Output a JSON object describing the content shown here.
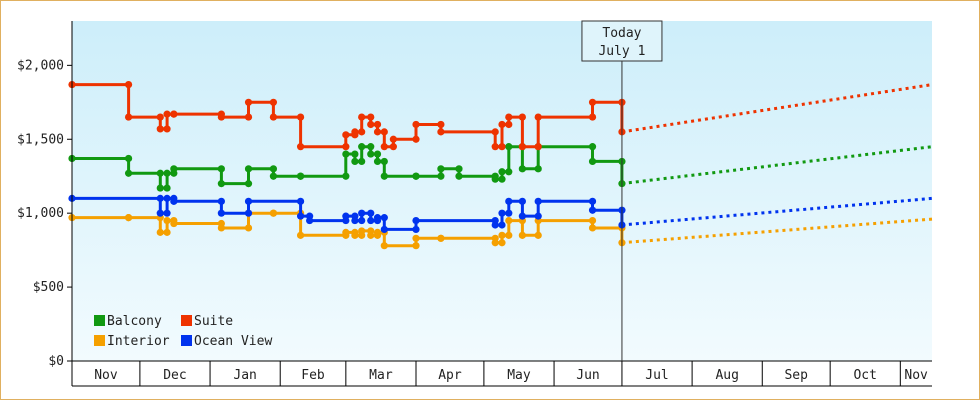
{
  "chart_data": {
    "type": "line",
    "ylim": [
      0,
      2300
    ],
    "y_ticks": [
      {
        "value": 0,
        "label": "$0"
      },
      {
        "value": 500,
        "label": "$500"
      },
      {
        "value": 1000,
        "label": "$1,000"
      },
      {
        "value": 1500,
        "label": "$1,500"
      },
      {
        "value": 2000,
        "label": "$2,000"
      }
    ],
    "x_range": [
      "2023-11-01",
      "2024-11-15"
    ],
    "months": [
      {
        "label": "Nov",
        "start": "2023-11-01",
        "end": "2023-12-01"
      },
      {
        "label": "Dec",
        "start": "2023-12-01",
        "end": "2024-01-01"
      },
      {
        "label": "Jan",
        "start": "2024-01-01",
        "end": "2024-02-01"
      },
      {
        "label": "Feb",
        "start": "2024-02-01",
        "end": "2024-03-01"
      },
      {
        "label": "Mar",
        "start": "2024-03-01",
        "end": "2024-04-01"
      },
      {
        "label": "Apr",
        "start": "2024-04-01",
        "end": "2024-05-01"
      },
      {
        "label": "May",
        "start": "2024-05-01",
        "end": "2024-06-01"
      },
      {
        "label": "Jun",
        "start": "2024-06-01",
        "end": "2024-07-01"
      },
      {
        "label": "Jul",
        "start": "2024-07-01",
        "end": "2024-08-01"
      },
      {
        "label": "Aug",
        "start": "2024-08-01",
        "end": "2024-09-01"
      },
      {
        "label": "Sep",
        "start": "2024-09-01",
        "end": "2024-10-01"
      },
      {
        "label": "Oct",
        "start": "2024-10-01",
        "end": "2024-11-01"
      },
      {
        "label": "Nov",
        "start": "2024-11-01",
        "end": "2024-11-15"
      }
    ],
    "today": {
      "date": "2024-07-01",
      "line1": "Today",
      "line2": "July 1"
    },
    "legend": {
      "placement": "bottom-left"
    },
    "series": [
      {
        "name": "Balcony",
        "color": "#119911",
        "points": [
          [
            "2023-11-01",
            1370
          ],
          [
            "2023-11-26",
            1370
          ],
          [
            "2023-11-26",
            1270
          ],
          [
            "2023-12-10",
            1270
          ],
          [
            "2023-12-10",
            1170
          ],
          [
            "2023-12-13",
            1170
          ],
          [
            "2023-12-13",
            1270
          ],
          [
            "2023-12-16",
            1270
          ],
          [
            "2023-12-16",
            1300
          ],
          [
            "2024-01-06",
            1300
          ],
          [
            "2024-01-06",
            1200
          ],
          [
            "2024-01-18",
            1200
          ],
          [
            "2024-01-18",
            1300
          ],
          [
            "2024-01-29",
            1300
          ],
          [
            "2024-01-29",
            1250
          ],
          [
            "2024-02-10",
            1250
          ],
          [
            "2024-02-10",
            1250
          ],
          [
            "2024-03-01",
            1250
          ],
          [
            "2024-03-01",
            1400
          ],
          [
            "2024-03-05",
            1400
          ],
          [
            "2024-03-05",
            1350
          ],
          [
            "2024-03-08",
            1350
          ],
          [
            "2024-03-08",
            1450
          ],
          [
            "2024-03-12",
            1450
          ],
          [
            "2024-03-12",
            1400
          ],
          [
            "2024-03-15",
            1400
          ],
          [
            "2024-03-15",
            1350
          ],
          [
            "2024-03-18",
            1350
          ],
          [
            "2024-03-18",
            1250
          ],
          [
            "2024-04-01",
            1250
          ],
          [
            "2024-04-01",
            1250
          ],
          [
            "2024-04-12",
            1250
          ],
          [
            "2024-04-12",
            1300
          ],
          [
            "2024-04-20",
            1300
          ],
          [
            "2024-04-20",
            1250
          ],
          [
            "2024-05-06",
            1250
          ],
          [
            "2024-05-06",
            1230
          ],
          [
            "2024-05-09",
            1230
          ],
          [
            "2024-05-09",
            1280
          ],
          [
            "2024-05-12",
            1280
          ],
          [
            "2024-05-12",
            1450
          ],
          [
            "2024-05-18",
            1450
          ],
          [
            "2024-05-18",
            1300
          ],
          [
            "2024-05-25",
            1300
          ],
          [
            "2024-05-25",
            1450
          ],
          [
            "2024-06-18",
            1450
          ],
          [
            "2024-06-18",
            1350
          ],
          [
            "2024-07-01",
            1350
          ],
          [
            "2024-07-01",
            1200
          ]
        ],
        "forecast": [
          [
            "2024-07-01",
            1200
          ],
          [
            "2024-11-15",
            1450
          ]
        ]
      },
      {
        "name": "Suite",
        "color": "#ee3300",
        "points": [
          [
            "2023-11-01",
            1870
          ],
          [
            "2023-11-26",
            1870
          ],
          [
            "2023-11-26",
            1650
          ],
          [
            "2023-12-10",
            1650
          ],
          [
            "2023-12-10",
            1570
          ],
          [
            "2023-12-13",
            1570
          ],
          [
            "2023-12-13",
            1670
          ],
          [
            "2023-12-16",
            1670
          ],
          [
            "2023-12-16",
            1670
          ],
          [
            "2024-01-06",
            1670
          ],
          [
            "2024-01-06",
            1650
          ],
          [
            "2024-01-18",
            1650
          ],
          [
            "2024-01-18",
            1750
          ],
          [
            "2024-01-29",
            1750
          ],
          [
            "2024-01-29",
            1650
          ],
          [
            "2024-02-10",
            1650
          ],
          [
            "2024-02-10",
            1450
          ],
          [
            "2024-03-01",
            1450
          ],
          [
            "2024-03-01",
            1530
          ],
          [
            "2024-03-05",
            1530
          ],
          [
            "2024-03-05",
            1550
          ],
          [
            "2024-03-08",
            1550
          ],
          [
            "2024-03-08",
            1650
          ],
          [
            "2024-03-12",
            1650
          ],
          [
            "2024-03-12",
            1600
          ],
          [
            "2024-03-15",
            1600
          ],
          [
            "2024-03-15",
            1550
          ],
          [
            "2024-03-18",
            1550
          ],
          [
            "2024-03-18",
            1450
          ],
          [
            "2024-03-22",
            1450
          ],
          [
            "2024-03-22",
            1500
          ],
          [
            "2024-04-01",
            1500
          ],
          [
            "2024-04-01",
            1600
          ],
          [
            "2024-04-12",
            1600
          ],
          [
            "2024-04-12",
            1550
          ],
          [
            "2024-05-06",
            1550
          ],
          [
            "2024-05-06",
            1450
          ],
          [
            "2024-05-09",
            1450
          ],
          [
            "2024-05-09",
            1600
          ],
          [
            "2024-05-12",
            1600
          ],
          [
            "2024-05-12",
            1650
          ],
          [
            "2024-05-18",
            1650
          ],
          [
            "2024-05-18",
            1450
          ],
          [
            "2024-05-25",
            1450
          ],
          [
            "2024-05-25",
            1650
          ],
          [
            "2024-06-18",
            1650
          ],
          [
            "2024-06-18",
            1750
          ],
          [
            "2024-07-01",
            1750
          ],
          [
            "2024-07-01",
            1550
          ]
        ],
        "forecast": [
          [
            "2024-07-01",
            1550
          ],
          [
            "2024-11-15",
            1870
          ]
        ]
      },
      {
        "name": "Interior",
        "color": "#f5a000",
        "points": [
          [
            "2023-11-01",
            970
          ],
          [
            "2023-11-26",
            970
          ],
          [
            "2023-11-26",
            970
          ],
          [
            "2023-12-10",
            970
          ],
          [
            "2023-12-10",
            870
          ],
          [
            "2023-12-13",
            870
          ],
          [
            "2023-12-13",
            950
          ],
          [
            "2023-12-16",
            950
          ],
          [
            "2023-12-16",
            930
          ],
          [
            "2024-01-06",
            930
          ],
          [
            "2024-01-06",
            900
          ],
          [
            "2024-01-18",
            900
          ],
          [
            "2024-01-18",
            1000
          ],
          [
            "2024-01-29",
            1000
          ],
          [
            "2024-01-29",
            1000
          ],
          [
            "2024-02-10",
            1000
          ],
          [
            "2024-02-10",
            850
          ],
          [
            "2024-03-01",
            850
          ],
          [
            "2024-03-01",
            870
          ],
          [
            "2024-03-05",
            870
          ],
          [
            "2024-03-05",
            850
          ],
          [
            "2024-03-08",
            850
          ],
          [
            "2024-03-08",
            880
          ],
          [
            "2024-03-12",
            880
          ],
          [
            "2024-03-12",
            850
          ],
          [
            "2024-03-15",
            850
          ],
          [
            "2024-03-15",
            870
          ],
          [
            "2024-03-18",
            870
          ],
          [
            "2024-03-18",
            780
          ],
          [
            "2024-04-01",
            780
          ],
          [
            "2024-04-01",
            830
          ],
          [
            "2024-04-12",
            830
          ],
          [
            "2024-04-12",
            830
          ],
          [
            "2024-05-06",
            830
          ],
          [
            "2024-05-06",
            800
          ],
          [
            "2024-05-09",
            800
          ],
          [
            "2024-05-09",
            850
          ],
          [
            "2024-05-12",
            850
          ],
          [
            "2024-05-12",
            950
          ],
          [
            "2024-05-18",
            950
          ],
          [
            "2024-05-18",
            850
          ],
          [
            "2024-05-25",
            850
          ],
          [
            "2024-05-25",
            950
          ],
          [
            "2024-06-18",
            950
          ],
          [
            "2024-06-18",
            900
          ],
          [
            "2024-07-01",
            900
          ],
          [
            "2024-07-01",
            800
          ]
        ],
        "forecast": [
          [
            "2024-07-01",
            800
          ],
          [
            "2024-11-15",
            960
          ]
        ]
      },
      {
        "name": "Ocean View",
        "color": "#0033ee",
        "points": [
          [
            "2023-11-01",
            1100
          ],
          [
            "2023-12-10",
            1100
          ],
          [
            "2023-12-10",
            1000
          ],
          [
            "2023-12-13",
            1000
          ],
          [
            "2023-12-13",
            1100
          ],
          [
            "2023-12-16",
            1100
          ],
          [
            "2023-12-16",
            1080
          ],
          [
            "2024-01-06",
            1080
          ],
          [
            "2024-01-06",
            1000
          ],
          [
            "2024-01-18",
            1000
          ],
          [
            "2024-01-18",
            1080
          ],
          [
            "2024-02-10",
            1080
          ],
          [
            "2024-02-10",
            980
          ],
          [
            "2024-02-14",
            980
          ],
          [
            "2024-02-14",
            950
          ],
          [
            "2024-03-01",
            950
          ],
          [
            "2024-03-01",
            980
          ],
          [
            "2024-03-05",
            980
          ],
          [
            "2024-03-05",
            950
          ],
          [
            "2024-03-08",
            950
          ],
          [
            "2024-03-08",
            1000
          ],
          [
            "2024-03-12",
            1000
          ],
          [
            "2024-03-12",
            950
          ],
          [
            "2024-03-15",
            950
          ],
          [
            "2024-03-15",
            970
          ],
          [
            "2024-03-18",
            970
          ],
          [
            "2024-03-18",
            890
          ],
          [
            "2024-04-01",
            890
          ],
          [
            "2024-04-01",
            950
          ],
          [
            "2024-05-06",
            950
          ],
          [
            "2024-05-06",
            920
          ],
          [
            "2024-05-09",
            920
          ],
          [
            "2024-05-09",
            1000
          ],
          [
            "2024-05-12",
            1000
          ],
          [
            "2024-05-12",
            1080
          ],
          [
            "2024-05-18",
            1080
          ],
          [
            "2024-05-18",
            980
          ],
          [
            "2024-05-25",
            980
          ],
          [
            "2024-05-25",
            1080
          ],
          [
            "2024-06-18",
            1080
          ],
          [
            "2024-06-18",
            1020
          ],
          [
            "2024-07-01",
            1020
          ],
          [
            "2024-07-01",
            920
          ]
        ],
        "forecast": [
          [
            "2024-07-01",
            920
          ],
          [
            "2024-11-15",
            1100
          ]
        ]
      }
    ]
  }
}
